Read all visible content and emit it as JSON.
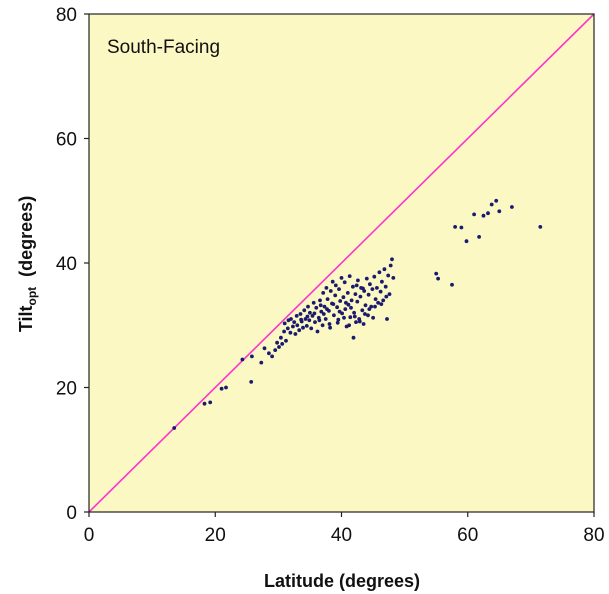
{
  "chart_data": {
    "type": "scatter",
    "annotation": "South-Facing",
    "xlabel": "Latitude  (degrees)",
    "ylabel_main": "Tilt",
    "ylabel_sub": "opt",
    "ylabel_rest": "  (degrees)",
    "xlim": [
      0,
      80
    ],
    "ylim": [
      0,
      80
    ],
    "xticks": [
      0,
      20,
      40,
      60,
      80
    ],
    "yticks": [
      0,
      20,
      40,
      60,
      80
    ],
    "xtick_labels": [
      "0",
      "20",
      "40",
      "60",
      "80"
    ],
    "ytick_labels": [
      "0",
      "20",
      "40",
      "60",
      "80"
    ],
    "grid": false,
    "background_color": "#fbf8c4",
    "point_color": "#1a1a6e",
    "reference_line": {
      "from": [
        0,
        0
      ],
      "to": [
        80,
        80
      ],
      "color": "#ff33cc"
    },
    "points": [
      [
        13.5,
        13.5
      ],
      [
        18.3,
        17.4
      ],
      [
        19.2,
        17.6
      ],
      [
        21.0,
        19.8
      ],
      [
        21.7,
        20.0
      ],
      [
        24.3,
        24.5
      ],
      [
        25.7,
        20.9
      ],
      [
        25.8,
        25.0
      ],
      [
        27.3,
        24.0
      ],
      [
        27.8,
        26.3
      ],
      [
        28.5,
        25.5
      ],
      [
        29.0,
        25.0
      ],
      [
        29.5,
        26.0
      ],
      [
        29.8,
        27.2
      ],
      [
        30.1,
        26.5
      ],
      [
        30.4,
        28.0
      ],
      [
        30.6,
        27.0
      ],
      [
        30.9,
        29.0
      ],
      [
        31.0,
        30.3
      ],
      [
        31.2,
        27.5
      ],
      [
        31.5,
        29.5
      ],
      [
        31.6,
        30.8
      ],
      [
        31.9,
        28.8
      ],
      [
        32.0,
        31.0
      ],
      [
        32.3,
        29.8
      ],
      [
        32.5,
        30.5
      ],
      [
        32.7,
        28.6
      ],
      [
        32.9,
        31.5
      ],
      [
        33.0,
        30.0
      ],
      [
        33.3,
        29.2
      ],
      [
        33.5,
        31.8
      ],
      [
        33.7,
        30.6
      ],
      [
        33.9,
        29.6
      ],
      [
        34.1,
        32.4
      ],
      [
        34.3,
        31.0
      ],
      [
        34.5,
        29.9
      ],
      [
        34.7,
        33.0
      ],
      [
        34.9,
        30.8
      ],
      [
        35.0,
        32.0
      ],
      [
        35.2,
        29.5
      ],
      [
        35.4,
        31.5
      ],
      [
        35.6,
        33.6
      ],
      [
        35.8,
        30.5
      ],
      [
        36.0,
        32.8
      ],
      [
        36.2,
        29.0
      ],
      [
        36.4,
        31.2
      ],
      [
        36.6,
        34.0
      ],
      [
        36.8,
        32.2
      ],
      [
        37.0,
        30.0
      ],
      [
        37.1,
        35.2
      ],
      [
        37.3,
        33.0
      ],
      [
        37.5,
        31.0
      ],
      [
        37.6,
        36.0
      ],
      [
        37.8,
        34.2
      ],
      [
        38.0,
        32.3
      ],
      [
        38.1,
        30.2
      ],
      [
        38.3,
        35.5
      ],
      [
        38.5,
        33.5
      ],
      [
        38.6,
        37.0
      ],
      [
        38.8,
        31.6
      ],
      [
        39.0,
        34.8
      ],
      [
        39.1,
        36.4
      ],
      [
        39.3,
        32.9
      ],
      [
        39.5,
        30.9
      ],
      [
        39.6,
        35.8
      ],
      [
        39.8,
        33.9
      ],
      [
        40.0,
        37.6
      ],
      [
        40.1,
        31.9
      ],
      [
        40.3,
        34.5
      ],
      [
        40.5,
        36.9
      ],
      [
        40.6,
        32.6
      ],
      [
        40.8,
        29.8
      ],
      [
        41.0,
        35.2
      ],
      [
        41.1,
        33.3
      ],
      [
        41.3,
        37.9
      ],
      [
        41.4,
        31.3
      ],
      [
        41.6,
        34.0
      ],
      [
        41.8,
        36.2
      ],
      [
        41.9,
        28.0
      ],
      [
        42.0,
        32.0
      ],
      [
        42.2,
        35.0
      ],
      [
        42.3,
        30.5
      ],
      [
        42.5,
        33.8
      ],
      [
        42.6,
        37.2
      ],
      [
        42.8,
        31.0
      ],
      [
        43.0,
        34.6
      ],
      [
        43.1,
        36.0
      ],
      [
        43.3,
        32.4
      ],
      [
        43.5,
        30.2
      ],
      [
        43.6,
        35.5
      ],
      [
        43.8,
        33.2
      ],
      [
        44.0,
        37.5
      ],
      [
        44.2,
        31.6
      ],
      [
        44.3,
        34.9
      ],
      [
        44.5,
        36.6
      ],
      [
        44.7,
        33.0
      ],
      [
        44.9,
        35.8
      ],
      [
        45.0,
        31.2
      ],
      [
        45.2,
        37.8
      ],
      [
        45.4,
        34.2
      ],
      [
        45.6,
        36.0
      ],
      [
        45.8,
        33.6
      ],
      [
        46.0,
        38.5
      ],
      [
        46.2,
        35.4
      ],
      [
        46.4,
        37.0
      ],
      [
        46.6,
        34.0
      ],
      [
        46.8,
        39.0
      ],
      [
        47.0,
        36.2
      ],
      [
        47.2,
        31.0
      ],
      [
        47.4,
        38.0
      ],
      [
        47.6,
        35.0
      ],
      [
        47.8,
        39.6
      ],
      [
        48.0,
        40.6
      ],
      [
        48.2,
        37.6
      ],
      [
        36.5,
        30.8
      ],
      [
        37.2,
        31.8
      ],
      [
        38.2,
        29.6
      ],
      [
        39.4,
        30.4
      ],
      [
        40.4,
        31.2
      ],
      [
        41.2,
        30.0
      ],
      [
        42.1,
        31.4
      ],
      [
        42.9,
        30.6
      ],
      [
        43.7,
        31.8
      ],
      [
        41.5,
        32.8
      ],
      [
        40.7,
        33.6
      ],
      [
        39.7,
        32.2
      ],
      [
        38.7,
        33.4
      ],
      [
        37.7,
        32.6
      ],
      [
        36.7,
        33.2
      ],
      [
        35.7,
        31.9
      ],
      [
        34.6,
        31.4
      ],
      [
        33.6,
        30.9
      ],
      [
        44.4,
        32.6
      ],
      [
        45.3,
        33.0
      ],
      [
        46.3,
        33.4
      ],
      [
        47.1,
        34.6
      ],
      [
        43.4,
        35.9
      ],
      [
        42.4,
        36.4
      ],
      [
        55.0,
        38.3
      ],
      [
        55.3,
        37.5
      ],
      [
        57.5,
        36.5
      ],
      [
        58.0,
        45.8
      ],
      [
        59.0,
        45.7
      ],
      [
        59.8,
        43.5
      ],
      [
        61.0,
        47.8
      ],
      [
        61.8,
        44.2
      ],
      [
        62.5,
        47.6
      ],
      [
        63.2,
        48.0
      ],
      [
        63.8,
        49.4
      ],
      [
        64.5,
        50.0
      ],
      [
        65.0,
        48.3
      ],
      [
        67.0,
        49.0
      ],
      [
        71.5,
        45.8
      ]
    ]
  }
}
